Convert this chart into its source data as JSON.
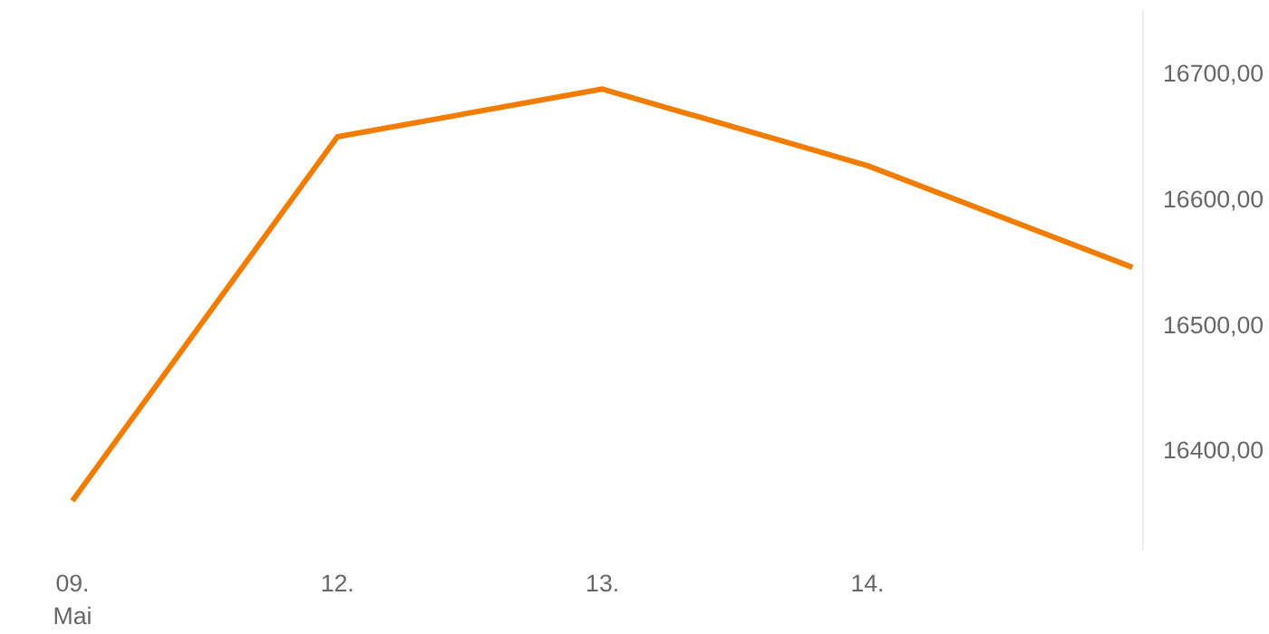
{
  "chart_data": {
    "type": "line",
    "categories": [
      "09.\nMai",
      "12.",
      "13.",
      "14.",
      null
    ],
    "series": [
      {
        "color": "#f07d00",
        "values": [
          16359,
          16649,
          16687,
          16626,
          16545
        ]
      }
    ],
    "ylim": [
      16320,
      16750
    ],
    "yticks": [
      {
        "value": 16400,
        "label": "16400,00"
      },
      {
        "value": 16500,
        "label": "16500,00"
      },
      {
        "value": 16600,
        "label": "16600,00"
      },
      {
        "value": 16700,
        "label": "16700,00"
      }
    ],
    "grid": false,
    "marker": "none",
    "line_style": "solid"
  }
}
